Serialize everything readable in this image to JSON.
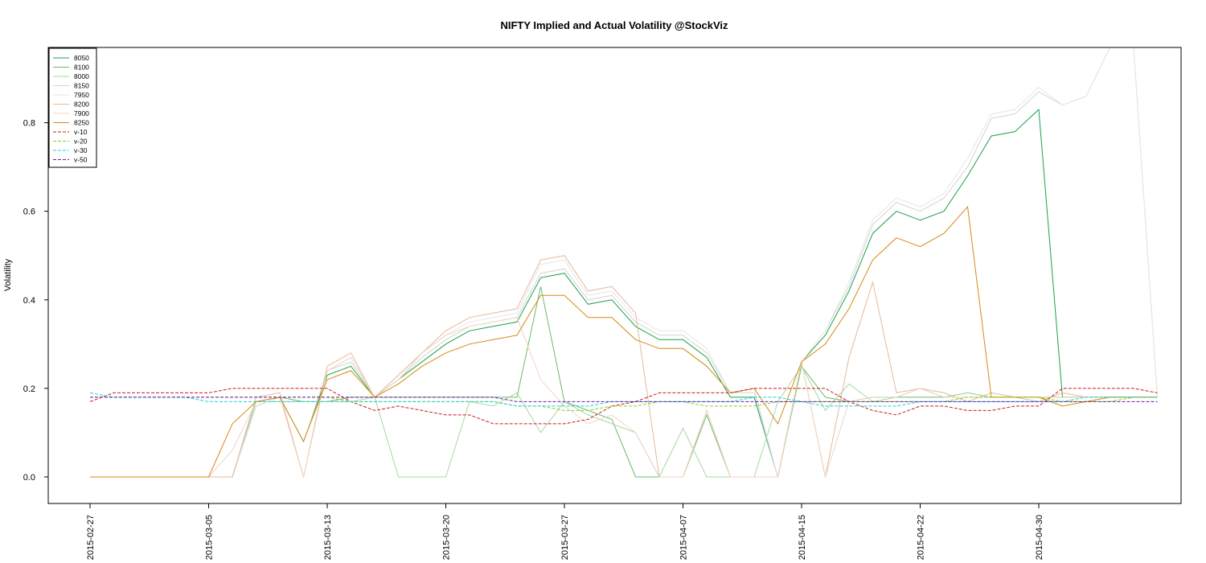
{
  "chart_data": {
    "type": "line",
    "title": "NIFTY Implied and Actual Volatility @StockViz",
    "xlabel": "",
    "ylabel": "Volatility",
    "ylim": [
      -0.06,
      0.97
    ],
    "yticks": [
      0.0,
      0.2,
      0.4,
      0.6,
      0.8
    ],
    "ytick_labels": [
      "0.0",
      "0.2",
      "0.4",
      "0.6",
      "0.8"
    ],
    "xtick_labels": [
      "2015-02-27",
      "2015-03-05",
      "2015-03-13",
      "2015-03-20",
      "2015-03-27",
      "2015-04-07",
      "2015-04-15",
      "2015-04-22",
      "2015-04-30"
    ],
    "xtick_index": [
      0,
      5,
      10,
      15,
      20,
      25,
      30,
      35,
      40
    ],
    "grid": false,
    "legend_position": "top-left",
    "series": [
      {
        "name": "8050",
        "color": "#1ba04a",
        "dash": "solid",
        "values": [
          0,
          0,
          0,
          0,
          0,
          0,
          0,
          0.16,
          0.18,
          0.08,
          0.23,
          0.25,
          0.18,
          0.22,
          0.26,
          0.3,
          0.33,
          0.34,
          0.35,
          0.45,
          0.46,
          0.39,
          0.4,
          0.34,
          0.31,
          0.31,
          0.27,
          0.18,
          0.18,
          0,
          0.26,
          0.32,
          0.42,
          0.55,
          0.6,
          0.58,
          0.6,
          0.68,
          0.77,
          0.78,
          0.83,
          0.18,
          0.18,
          0.18,
          0.18,
          0.18
        ]
      },
      {
        "name": "8100",
        "color": "#6abb6a",
        "dash": "solid",
        "values": [
          0,
          0,
          0,
          0,
          0,
          0,
          0,
          0.17,
          0.18,
          0.17,
          0.17,
          0.18,
          0.18,
          0.18,
          0.18,
          0.18,
          0.18,
          0.18,
          0.18,
          0.43,
          0.17,
          0.15,
          0.13,
          0,
          0,
          0,
          0.14,
          0,
          0,
          0,
          0.25,
          0.18,
          0.17,
          0.18,
          0.18,
          0.18,
          0.18,
          0.19,
          0.18,
          0.18,
          0.18,
          0.18,
          0.18,
          0.18,
          0.18,
          0.18
        ]
      },
      {
        "name": "8000",
        "color": "#a9d7a4",
        "dash": "solid",
        "values": [
          0,
          0,
          0,
          0,
          0,
          0,
          0,
          0.17,
          0.17,
          0.17,
          0.17,
          0.17,
          0.18,
          0,
          0,
          0,
          0.17,
          0.16,
          0.19,
          0.1,
          0.17,
          0.14,
          0.12,
          0.1,
          0,
          0.11,
          0,
          0,
          0,
          0.17,
          0.25,
          0.15,
          0.21,
          0.17,
          0.18,
          0.2,
          0.18,
          0.19,
          0.18,
          0.18,
          0.18,
          0.18,
          0.18,
          0.18,
          0.18,
          0.18
        ]
      },
      {
        "name": "8150",
        "color": "#d4d4d4",
        "dash": "solid",
        "values": [
          0,
          0,
          0,
          0,
          0,
          0,
          0,
          0.16,
          0.18,
          0.08,
          0.24,
          0.26,
          0.18,
          0.22,
          0.27,
          0.31,
          0.34,
          0.35,
          0.36,
          0.46,
          0.47,
          0.4,
          0.41,
          0.35,
          0.32,
          0.32,
          0.28,
          0.19,
          0.19,
          0,
          0.26,
          0.33,
          0.43,
          0.57,
          0.62,
          0.6,
          0.63,
          0.7,
          0.81,
          0.82,
          0.87,
          0.84,
          0.86,
          0.99,
          0.99,
          0.18
        ]
      },
      {
        "name": "7950",
        "color": "#e6e6e6",
        "dash": "solid",
        "values": [
          0,
          0,
          0,
          0,
          0,
          0,
          0,
          0.16,
          0.18,
          0.08,
          0.24,
          0.27,
          0.18,
          0.23,
          0.28,
          0.32,
          0.35,
          0.36,
          0.37,
          0.48,
          0.49,
          0.41,
          0.42,
          0.36,
          0.33,
          0.33,
          0.29,
          0.19,
          0.2,
          0,
          0.26,
          0.33,
          0.44,
          0.58,
          0.63,
          0.61,
          0.64,
          0.72,
          0.82,
          0.83,
          0.88,
          0.84,
          0.86,
          0.99,
          0.99,
          0.18
        ]
      },
      {
        "name": "8200",
        "color": "#e3b99a",
        "dash": "solid",
        "values": [
          0,
          0,
          0,
          0,
          0,
          0,
          0,
          0.18,
          0.19,
          0,
          0.25,
          0.28,
          0.18,
          0.23,
          0.28,
          0.33,
          0.36,
          0.37,
          0.38,
          0.49,
          0.5,
          0.42,
          0.43,
          0.37,
          0,
          0,
          0.15,
          0,
          0,
          0,
          0.26,
          0,
          0.27,
          0.44,
          0.19,
          0.2,
          0.19,
          0.17,
          0.19,
          0.18,
          0.17,
          0.19,
          0.18,
          0.18,
          0.18,
          0.18
        ]
      },
      {
        "name": "7900",
        "color": "#efd5c3",
        "dash": "solid",
        "values": [
          0,
          0,
          0,
          0,
          0,
          0,
          0.06,
          0.17,
          0.18,
          0,
          0.24,
          0.27,
          0.18,
          0.22,
          0.28,
          0.32,
          0.34,
          0.35,
          0.36,
          0.22,
          0.16,
          0.12,
          0.14,
          0.1,
          0,
          0,
          0.15,
          0,
          0,
          0,
          0.26,
          0,
          0.17,
          0.18,
          0.18,
          0.2,
          0.18,
          0.18,
          0.18,
          0.18,
          0.18,
          0.18,
          0.18,
          0.18,
          0.18,
          0.18
        ]
      },
      {
        "name": "8250",
        "color": "#d68a10",
        "dash": "solid",
        "values": [
          0,
          0,
          0,
          0,
          0,
          0,
          0.12,
          0.17,
          0.18,
          0.08,
          0.22,
          0.24,
          0.18,
          0.21,
          0.25,
          0.28,
          0.3,
          0.31,
          0.32,
          0.41,
          0.41,
          0.36,
          0.36,
          0.31,
          0.29,
          0.29,
          0.25,
          0.19,
          0.2,
          0.12,
          0.26,
          0.3,
          0.38,
          0.49,
          0.54,
          0.52,
          0.55,
          0.61,
          0.18,
          0.18,
          0.18,
          0.16,
          0.17,
          0.18,
          0.18,
          0.18
        ]
      },
      {
        "name": "v-10",
        "color": "#cc1a1a",
        "dash": "dashed",
        "values": [
          0.17,
          0.19,
          0.19,
          0.19,
          0.19,
          0.19,
          0.2,
          0.2,
          0.2,
          0.2,
          0.2,
          0.17,
          0.15,
          0.16,
          0.15,
          0.14,
          0.14,
          0.12,
          0.12,
          0.12,
          0.12,
          0.13,
          0.16,
          0.17,
          0.19,
          0.19,
          0.19,
          0.19,
          0.2,
          0.2,
          0.2,
          0.2,
          0.17,
          0.15,
          0.14,
          0.16,
          0.16,
          0.15,
          0.15,
          0.16,
          0.16,
          0.2,
          0.2,
          0.2,
          0.2,
          0.19
        ]
      },
      {
        "name": "v-20",
        "color": "#8ad21e",
        "dash": "dashed",
        "values": [
          0.18,
          0.18,
          0.18,
          0.18,
          0.18,
          0.18,
          0.18,
          0.18,
          0.18,
          0.18,
          0.18,
          0.17,
          0.17,
          0.17,
          0.17,
          0.17,
          0.17,
          0.17,
          0.16,
          0.16,
          0.15,
          0.15,
          0.16,
          0.16,
          0.17,
          0.17,
          0.16,
          0.16,
          0.16,
          0.17,
          0.17,
          0.17,
          0.17,
          0.17,
          0.17,
          0.17,
          0.17,
          0.18,
          0.18,
          0.18,
          0.18,
          0.17,
          0.17,
          0.17,
          0.18,
          0.18
        ]
      },
      {
        "name": "v-30",
        "color": "#20d0d8",
        "dash": "dashed",
        "values": [
          0.19,
          0.18,
          0.18,
          0.18,
          0.18,
          0.17,
          0.17,
          0.17,
          0.17,
          0.17,
          0.17,
          0.17,
          0.17,
          0.17,
          0.17,
          0.17,
          0.17,
          0.17,
          0.16,
          0.16,
          0.16,
          0.16,
          0.17,
          0.17,
          0.17,
          0.17,
          0.17,
          0.17,
          0.18,
          0.18,
          0.17,
          0.16,
          0.16,
          0.16,
          0.16,
          0.17,
          0.17,
          0.17,
          0.17,
          0.17,
          0.17,
          0.17,
          0.18,
          0.18,
          0.18,
          0.18
        ]
      },
      {
        "name": "v-50",
        "color": "#6a1ab0",
        "dash": "dashed",
        "values": [
          0.18,
          0.18,
          0.18,
          0.18,
          0.18,
          0.18,
          0.18,
          0.18,
          0.18,
          0.18,
          0.18,
          0.18,
          0.18,
          0.18,
          0.18,
          0.18,
          0.18,
          0.18,
          0.17,
          0.17,
          0.17,
          0.17,
          0.17,
          0.17,
          0.17,
          0.17,
          0.17,
          0.17,
          0.17,
          0.17,
          0.17,
          0.17,
          0.17,
          0.17,
          0.17,
          0.17,
          0.17,
          0.17,
          0.17,
          0.17,
          0.17,
          0.17,
          0.17,
          0.17,
          0.17,
          0.17
        ]
      }
    ]
  }
}
